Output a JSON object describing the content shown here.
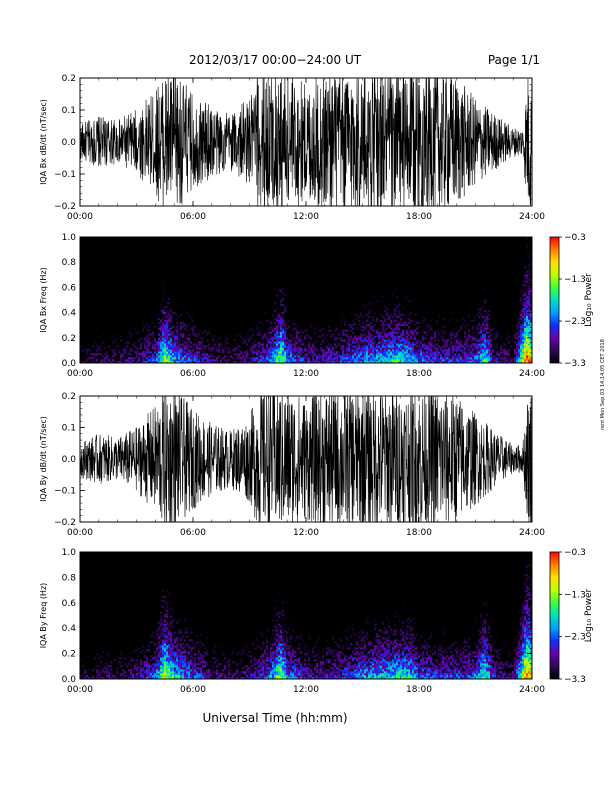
{
  "header": {
    "title": "2012/03/17   00:00−24:00  UT",
    "page": "Page 1/1"
  },
  "x_axis_title": "Universal Time (hh:mm)",
  "side_stamp": "rent Mon Sep 03 14:14:05 CET 2018",
  "colors": {
    "trace": "#000000",
    "colormap": [
      "#000000",
      "#2a0a55",
      "#6a00a8",
      "#1030ff",
      "#00a0ff",
      "#00e0c0",
      "#40ff40",
      "#c0ff00",
      "#ffe000",
      "#ff8000",
      "#ff0000"
    ]
  },
  "chart_data": [
    {
      "type": "line",
      "ylabel": "IQA Bx dB/dt (nT/sec)",
      "ylim": [
        -0.2,
        0.2
      ],
      "yticks": [
        -0.2,
        -0.1,
        0.0,
        0.1,
        0.2
      ],
      "ytick_labels": [
        "−0.2",
        "−0.1",
        "0.0",
        "0.1",
        "0.2"
      ],
      "xlim": [
        0,
        24
      ],
      "xticks": [
        0,
        6,
        12,
        18,
        24
      ],
      "xtick_labels": [
        "00:00",
        "06:00",
        "12:00",
        "18:00",
        "24:00"
      ],
      "envelope": {
        "hours": [
          0,
          1,
          2,
          3,
          4,
          4.5,
          5,
          6,
          7,
          8,
          9,
          9.5,
          10,
          10.5,
          11,
          12,
          13,
          14,
          15,
          16,
          17,
          18,
          19,
          20,
          21,
          22,
          23,
          23.5,
          23.8,
          24
        ],
        "amplitude": [
          0.05,
          0.07,
          0.06,
          0.09,
          0.14,
          0.2,
          0.2,
          0.13,
          0.1,
          0.08,
          0.12,
          0.2,
          0.2,
          0.2,
          0.2,
          0.16,
          0.2,
          0.2,
          0.2,
          0.2,
          0.2,
          0.2,
          0.2,
          0.18,
          0.12,
          0.08,
          0.04,
          0.04,
          0.2,
          0.2
        ]
      }
    },
    {
      "type": "heatmap",
      "ylabel": "IQA Bx Freq (Hz)",
      "ylim": [
        0.0,
        1.0
      ],
      "yticks": [
        0.0,
        0.2,
        0.4,
        0.6,
        0.8,
        1.0
      ],
      "ytick_labels": [
        "0.0",
        "0.2",
        "0.4",
        "0.6",
        "0.8",
        "1.0"
      ],
      "xlim": [
        0,
        24
      ],
      "xticks": [
        0,
        6,
        12,
        18,
        24
      ],
      "xtick_labels": [
        "00:00",
        "06:00",
        "12:00",
        "18:00",
        "24:00"
      ],
      "colorbar": {
        "label": "Log₁₀ Power",
        "range": [
          -3.3,
          -0.3
        ],
        "ticks": [
          -3.3,
          -2.3,
          -1.3,
          -0.3
        ],
        "tick_labels": [
          "−3.3",
          "−2.3",
          "−1.3",
          "−0.3"
        ]
      },
      "activity": {
        "hours": [
          0,
          1,
          2,
          3,
          4,
          4.5,
          5,
          6,
          7,
          8,
          9,
          10,
          10.7,
          11,
          12,
          13,
          14,
          15,
          16,
          17,
          17.5,
          18,
          19,
          20,
          21,
          21.5,
          22,
          23,
          23.7,
          24
        ],
        "level": [
          0.25,
          0.3,
          0.3,
          0.35,
          0.45,
          0.8,
          0.6,
          0.45,
          0.35,
          0.3,
          0.35,
          0.5,
          0.8,
          0.55,
          0.4,
          0.4,
          0.45,
          0.55,
          0.6,
          0.65,
          0.6,
          0.5,
          0.45,
          0.45,
          0.5,
          0.7,
          0.4,
          0.3,
          1.0,
          0.9
        ]
      }
    },
    {
      "type": "line",
      "ylabel": "IQA By dB/dt (nT/sec)",
      "ylim": [
        -0.2,
        0.2
      ],
      "yticks": [
        -0.2,
        -0.1,
        0.0,
        0.1,
        0.2
      ],
      "ytick_labels": [
        "−0.2",
        "−0.1",
        "0.0",
        "0.1",
        "0.2"
      ],
      "xlim": [
        0,
        24
      ],
      "xticks": [
        0,
        6,
        12,
        18,
        24
      ],
      "xtick_labels": [
        "00:00",
        "06:00",
        "12:00",
        "18:00",
        "24:00"
      ],
      "envelope": {
        "hours": [
          0,
          1,
          2,
          3,
          4,
          4.5,
          5,
          6,
          7,
          8,
          9,
          9.5,
          10,
          10.5,
          11,
          12,
          13,
          14,
          15,
          16,
          17,
          18,
          19,
          20,
          21,
          22,
          23,
          23.5,
          23.8,
          24
        ],
        "amplitude": [
          0.05,
          0.07,
          0.06,
          0.09,
          0.15,
          0.2,
          0.2,
          0.14,
          0.1,
          0.08,
          0.12,
          0.2,
          0.2,
          0.2,
          0.2,
          0.17,
          0.2,
          0.2,
          0.2,
          0.2,
          0.2,
          0.2,
          0.2,
          0.18,
          0.13,
          0.08,
          0.04,
          0.04,
          0.2,
          0.2
        ]
      }
    },
    {
      "type": "heatmap",
      "ylabel": "IQA By Freq (Hz)",
      "ylim": [
        0.0,
        1.0
      ],
      "yticks": [
        0.0,
        0.2,
        0.4,
        0.6,
        0.8,
        1.0
      ],
      "ytick_labels": [
        "0.0",
        "0.2",
        "0.4",
        "0.6",
        "0.8",
        "1.0"
      ],
      "xlim": [
        0,
        24
      ],
      "xticks": [
        0,
        6,
        12,
        18,
        24
      ],
      "xtick_labels": [
        "00:00",
        "06:00",
        "12:00",
        "18:00",
        "24:00"
      ],
      "colorbar": {
        "label": "Log₁₀ Power",
        "range": [
          -3.3,
          -0.3
        ],
        "ticks": [
          -3.3,
          -2.3,
          -1.3,
          -0.3
        ],
        "tick_labels": [
          "−3.3",
          "−2.3",
          "−1.3",
          "−0.3"
        ]
      },
      "activity": {
        "hours": [
          0,
          1,
          2,
          3,
          4,
          4.5,
          5,
          6,
          7,
          8,
          9,
          10,
          10.7,
          11,
          12,
          13,
          14,
          15,
          16,
          17,
          17.5,
          18,
          19,
          20,
          21,
          21.5,
          22,
          23,
          23.7,
          24
        ],
        "level": [
          0.25,
          0.3,
          0.3,
          0.35,
          0.5,
          0.85,
          0.65,
          0.5,
          0.35,
          0.3,
          0.35,
          0.5,
          0.8,
          0.55,
          0.4,
          0.4,
          0.45,
          0.55,
          0.6,
          0.65,
          0.65,
          0.5,
          0.45,
          0.45,
          0.5,
          0.75,
          0.4,
          0.3,
          1.0,
          0.9
        ]
      }
    }
  ]
}
